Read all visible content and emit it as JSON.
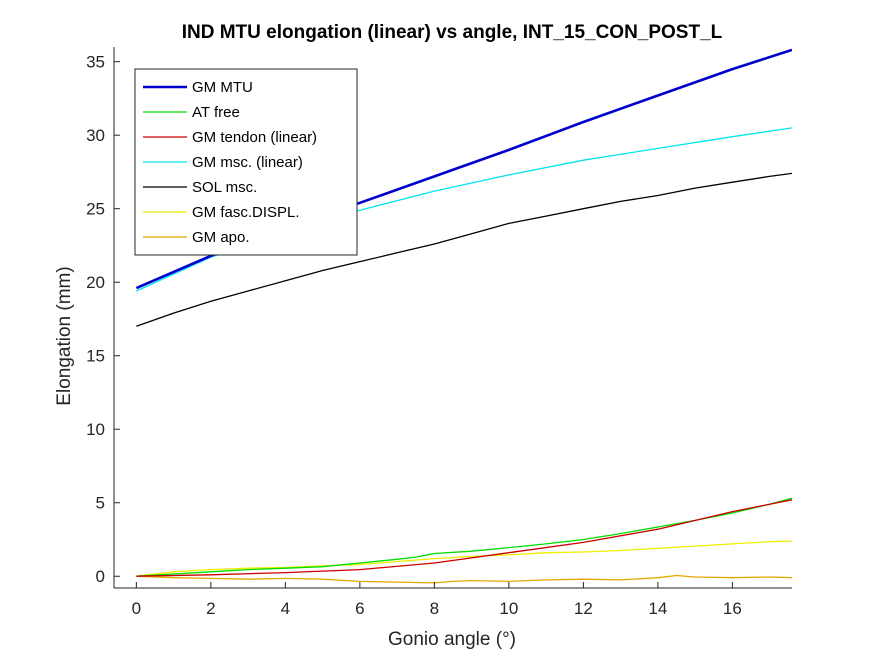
{
  "chart_data": {
    "type": "line",
    "title": "IND MTU elongation (linear) vs angle, INT_15_CON_POST_L",
    "xlabel": "Gonio angle (°)",
    "ylabel": "Elongation (mm)",
    "xlim": [
      -0.6,
      17.6
    ],
    "ylim": [
      -0.8,
      36
    ],
    "x_ticks": [
      0,
      2,
      4,
      6,
      8,
      10,
      12,
      14,
      16
    ],
    "y_ticks": [
      0,
      5,
      10,
      15,
      20,
      25,
      30,
      35
    ],
    "grid": false,
    "legend_position": "top-left",
    "series": [
      {
        "name": "GM MTU",
        "color": "#0000cc",
        "bold": true,
        "x": [
          0,
          2,
          4,
          6,
          8,
          10,
          12,
          14,
          16,
          17.6
        ],
        "y": [
          19.6,
          21.8,
          23.7,
          25.4,
          27.2,
          29.0,
          30.9,
          32.7,
          34.5,
          35.8
        ]
      },
      {
        "name": "AT free",
        "color": "#00dd00",
        "x": [
          0,
          1,
          2,
          3,
          4,
          5,
          6,
          7,
          7.5,
          8,
          9,
          10,
          11,
          12,
          13,
          14,
          15,
          16,
          17,
          17.6
        ],
        "y": [
          0.0,
          0.15,
          0.3,
          0.45,
          0.55,
          0.65,
          0.9,
          1.15,
          1.3,
          1.55,
          1.7,
          1.95,
          2.2,
          2.5,
          2.9,
          3.35,
          3.8,
          4.3,
          4.9,
          5.3
        ]
      },
      {
        "name": "GM tendon (linear)",
        "color": "#cc0000",
        "x": [
          0,
          2,
          4,
          6,
          8,
          10,
          12,
          14,
          16,
          17.6
        ],
        "y": [
          0.0,
          0.1,
          0.25,
          0.45,
          0.9,
          1.6,
          2.3,
          3.2,
          4.4,
          5.2
        ]
      },
      {
        "name": "GM msc. (linear)",
        "color": "#00e5ee",
        "x": [
          0,
          2,
          4,
          6,
          8,
          10,
          12,
          14,
          16,
          17.6
        ],
        "y": [
          19.4,
          21.7,
          23.5,
          24.9,
          26.2,
          27.3,
          28.3,
          29.1,
          29.9,
          30.5
        ]
      },
      {
        "name": "SOL msc.",
        "color": "#000000",
        "x": [
          0,
          1,
          2,
          3,
          4,
          5,
          6,
          7,
          8,
          9,
          10,
          11,
          12,
          13,
          14,
          15,
          16,
          17,
          17.6
        ],
        "y": [
          17.0,
          17.9,
          18.7,
          19.4,
          20.1,
          20.8,
          21.4,
          22.0,
          22.6,
          23.3,
          24.0,
          24.5,
          25.0,
          25.5,
          25.9,
          26.4,
          26.8,
          27.2,
          27.4
        ]
      },
      {
        "name": "GM fasc.DISPL.",
        "color": "#eeee00",
        "x": [
          0,
          1,
          2,
          3,
          4,
          5,
          6,
          7,
          8,
          9,
          10,
          11,
          12,
          13,
          14,
          15,
          16,
          17,
          17.6
        ],
        "y": [
          0.0,
          0.3,
          0.45,
          0.55,
          0.6,
          0.7,
          0.8,
          1.0,
          1.2,
          1.35,
          1.45,
          1.6,
          1.65,
          1.75,
          1.9,
          2.05,
          2.2,
          2.35,
          2.4
        ]
      },
      {
        "name": "GM apo.",
        "color": "#e6a800",
        "x": [
          0,
          1,
          2,
          3,
          4,
          5,
          6,
          7,
          8,
          8.5,
          9,
          10,
          11,
          12,
          13,
          14,
          14.5,
          15,
          16,
          17,
          17.6
        ],
        "y": [
          0.0,
          -0.1,
          -0.15,
          -0.2,
          -0.15,
          -0.2,
          -0.35,
          -0.4,
          -0.45,
          -0.35,
          -0.3,
          -0.35,
          -0.25,
          -0.2,
          -0.25,
          -0.1,
          0.05,
          -0.05,
          -0.1,
          -0.05,
          -0.1
        ]
      }
    ]
  }
}
